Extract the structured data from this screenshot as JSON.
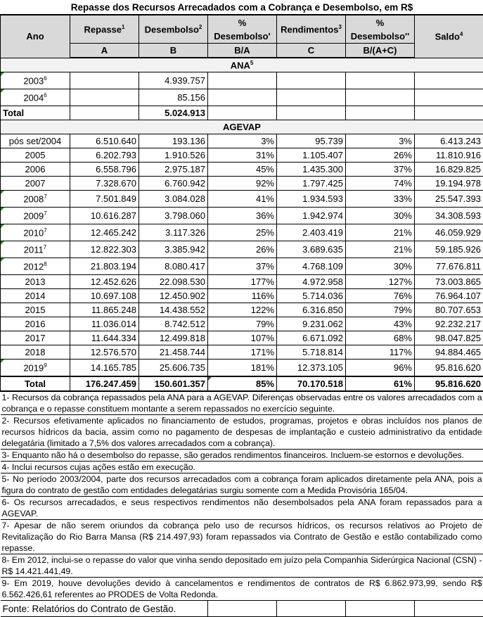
{
  "title": "Repasse dos Recursos Arrecadados com a Cobrança e Desembolso, em R$",
  "headers": [
    {
      "label": "Ano",
      "sup": ""
    },
    {
      "label": "Repasse",
      "sup": "1"
    },
    {
      "label": "Desembolso",
      "sup": "2"
    },
    {
      "label": "% Desembolso'",
      "sup": ""
    },
    {
      "label": "Rendimentos",
      "sup": "3"
    },
    {
      "label": "% Desembolso''",
      "sup": ""
    },
    {
      "label": "Saldo",
      "sup": "4"
    }
  ],
  "subheaders": [
    "A",
    "B",
    "B/A",
    "C",
    "B/(A+C)"
  ],
  "sections": [
    {
      "label": "ANA",
      "sup": "5",
      "rows": [
        {
          "ano": "2003",
          "sup": "6",
          "flag": true,
          "values": [
            "",
            "4.939.757",
            "",
            "",
            "",
            ""
          ]
        },
        {
          "ano": "2004",
          "sup": "6",
          "flag": true,
          "values": [
            "",
            "85.156",
            "",
            "",
            "",
            ""
          ]
        },
        {
          "ano": "Total",
          "sup": "",
          "bold": true,
          "values": [
            "",
            "5.024.913",
            "",
            "",
            "",
            ""
          ]
        }
      ]
    },
    {
      "label": "AGEVAP",
      "sup": "",
      "rows": [
        {
          "ano": "pós set/2004",
          "sup": "",
          "values": [
            "6.510.640",
            "193.136",
            "3%",
            "95.739",
            "3%",
            "6.413.243"
          ]
        },
        {
          "ano": "2005",
          "sup": "",
          "values": [
            "6.202.793",
            "1.910.526",
            "31%",
            "1.105.407",
            "26%",
            "11.810.916"
          ]
        },
        {
          "ano": "2006",
          "sup": "",
          "values": [
            "6.558.796",
            "2.975.187",
            "45%",
            "1.435.300",
            "37%",
            "16.829.825"
          ]
        },
        {
          "ano": "2007",
          "sup": "",
          "values": [
            "7.328.670",
            "6.760.942",
            "92%",
            "1.797.425",
            "74%",
            "19.194.978"
          ]
        },
        {
          "ano": "2008",
          "sup": "7",
          "flag": true,
          "values": [
            "7.501.849",
            "3.084.028",
            "41%",
            "1.934.593",
            "33%",
            "25.547.393"
          ]
        },
        {
          "ano": "2009",
          "sup": "7",
          "flag": true,
          "values": [
            "10.616.287",
            "3.798.060",
            "36%",
            "1.942.974",
            "30%",
            "34.308.593"
          ]
        },
        {
          "ano": "2010",
          "sup": "7",
          "flag": true,
          "values": [
            "12.465.242",
            "3.117.326",
            "25%",
            "2.403.419",
            "21%",
            "46.059.929"
          ]
        },
        {
          "ano": "2011",
          "sup": "7",
          "flag": true,
          "values": [
            "12.822.303",
            "3.385.942",
            "26%",
            "3.689.635",
            "21%",
            "59.185.926"
          ]
        },
        {
          "ano": "2012",
          "sup": "8",
          "flag": true,
          "values": [
            "21.803.194",
            "8.080.417",
            "37%",
            "4.768.109",
            "30%",
            "77.676.811"
          ]
        },
        {
          "ano": "2013",
          "sup": "",
          "values": [
            "12.452.626",
            "22.098.530",
            "177%",
            "4.972.958",
            "127%",
            "73.003.865"
          ]
        },
        {
          "ano": "2014",
          "sup": "",
          "values": [
            "10.697.108",
            "12.450.902",
            "116%",
            "5.714.036",
            "76%",
            "76.964.107"
          ]
        },
        {
          "ano": "2015",
          "sup": "",
          "values": [
            "11.865.248",
            "14.438.552",
            "122%",
            "6.316.850",
            "79%",
            "80.707.653"
          ]
        },
        {
          "ano": "2016",
          "sup": "",
          "values": [
            "11.036.014",
            "8.742.512",
            "79%",
            "9.231.062",
            "43%",
            "92.232.217"
          ]
        },
        {
          "ano": "2017",
          "sup": "",
          "values": [
            "11.644.334",
            "12.499.818",
            "107%",
            "6.671.092",
            "68%",
            "98.047.825"
          ]
        },
        {
          "ano": "2018",
          "sup": "",
          "values": [
            "12.576.570",
            "21.458.744",
            "171%",
            "5.718.814",
            "117%",
            "94.884.465"
          ]
        },
        {
          "ano": "2019",
          "sup": "9",
          "flag": true,
          "values": [
            "14.165.785",
            "25.606.735",
            "181%",
            "12.373.105",
            "96%",
            "95.816.620"
          ]
        },
        {
          "ano": "Total",
          "sup": "",
          "bold": true,
          "total": true,
          "flagCol": 3,
          "values": [
            "176.247.459",
            "150.601.357",
            "85%",
            "70.170.518",
            "61%",
            "95.816.620"
          ]
        }
      ]
    }
  ],
  "notes": [
    "1- Recursos da cobrança repassados pela ANA para a AGEVAP. Diferenças observadas entre os valores arrecadados com a cobrança e o repasse constituem montante a serem repassados no exercício seguinte.",
    "2- Recursos efetivamente aplicados no financiamento de estudos, programas, projetos e obras incluídos nos planos de recursos hídricos da bacia, assim como no pagamento de despesas de implantação e custeio administrativo da entidade delegatária  (limitado a 7,5% dos valores arrecadados com a cobrança).",
    "3- Enquanto não há o desembolso do repasse, são gerados rendimentos financeiros. Incluem-se estornos e devoluções.",
    "4- Inclui recursos cujas ações estão em execução.",
    "5- No período 2003/2004, parte dos recursos arrecadados com a cobrança foram aplicados diretamente pela ANA, pois a figura do contrato de gestão com entidades delegatárias surgiu somente com a Medida Provisória 165/04.",
    "6- Os recursos arrecadados, e seus respectivos rendimentos não desembolsados pela ANA foram repassados para a AGEVAP.",
    "7- Apesar de não serem oriundos da cobrança pelo uso de recursos hídricos, os recursos relativos ao Projeto de Revitalização do Rio Barra Mansa (R$ 214.497,93) foram repassados via Contrato de Gestão e estão contabilizado como repasse.",
    "8- Em 2012, inclui-se o repasse do valor que vinha sendo depositado em juízo pela Companhia Siderúrgica Nacional (CSN) - R$ 14.421.441,49.",
    "9- Em 2019, houve devoluções devido à cancelamentos e rendimentos de contratos de R$ 6.862.973,99, sendo R$ 6.562.426,61 referentes ao PRODES de Volta Redonda."
  ],
  "source": "Fonte: Relatórios do Contrato de Gestão.",
  "colors": {
    "header_bg": "#d9d9d9",
    "section_bg": "#f2f2f2",
    "comment_marker": "#2e7d32"
  }
}
